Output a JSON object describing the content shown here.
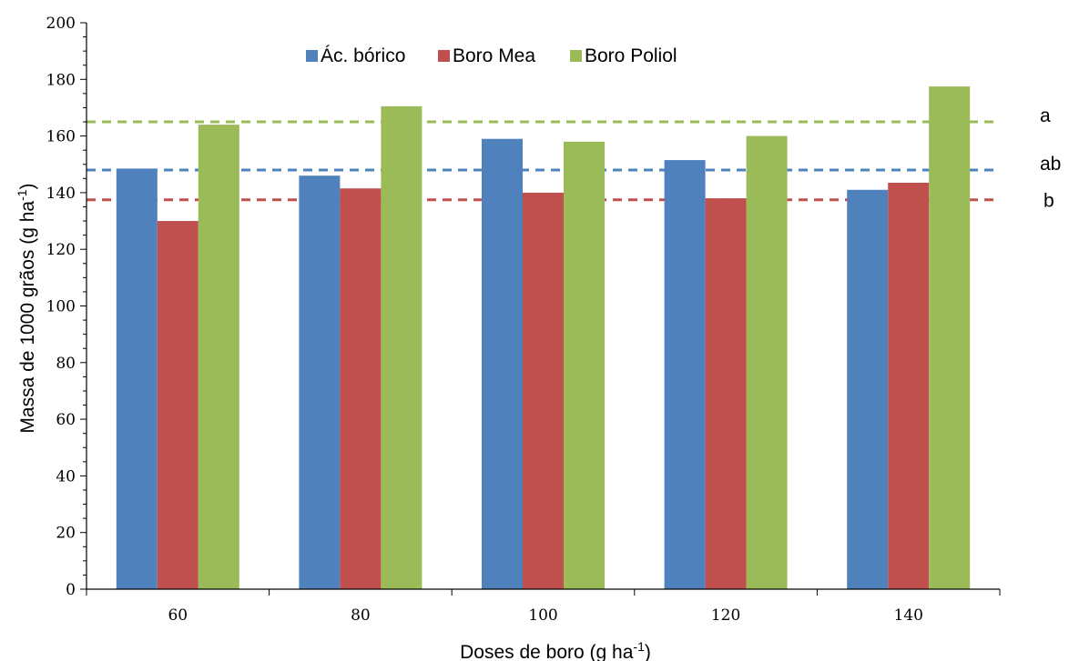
{
  "chart_data": {
    "type": "bar",
    "title": "",
    "xlabel": {
      "text": "Doses de boro (g ha",
      "sup": "-1",
      "suffix": ")"
    },
    "ylabel": {
      "text": "Massa de 1000 grãos (g ha",
      "sup": "-1",
      "suffix": ")"
    },
    "categories": [
      "60",
      "80",
      "100",
      "120",
      "140"
    ],
    "ylim": [
      0,
      200
    ],
    "yticks": [
      "0",
      "20",
      "40",
      "60",
      "80",
      "100",
      "120",
      "140",
      "160",
      "180",
      "200"
    ],
    "grid": false,
    "legend_position": "top-center",
    "series": [
      {
        "name": "Ác. bórico",
        "color": "#4F81BD",
        "values": [
          148.5,
          146,
          159,
          151.5,
          141
        ]
      },
      {
        "name": "Boro Mea",
        "color": "#C0504D",
        "values": [
          130,
          141.5,
          140,
          138,
          143.5
        ]
      },
      {
        "name": "Boro Poliol",
        "color": "#9BBB59",
        "values": [
          164,
          170.5,
          158,
          160,
          177.5
        ]
      }
    ],
    "reference_lines": [
      {
        "label": "a",
        "value": 165,
        "color": "#9BBB59"
      },
      {
        "label": "ab",
        "value": 148,
        "color": "#4F81BD"
      },
      {
        "label": "b",
        "value": 137.5,
        "color": "#C0504D"
      }
    ]
  }
}
